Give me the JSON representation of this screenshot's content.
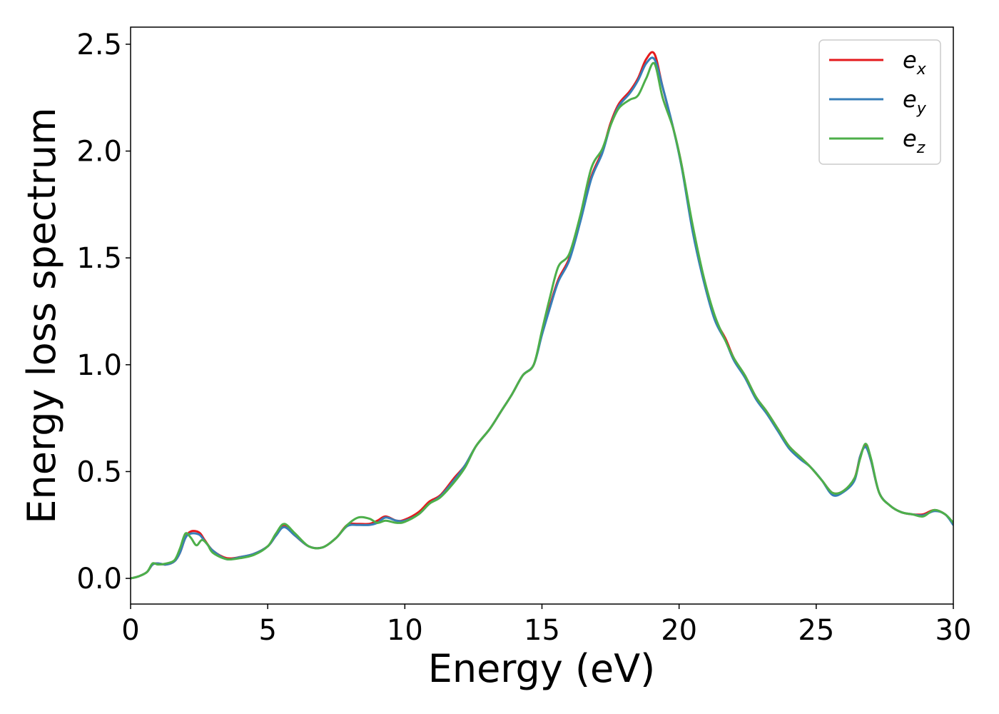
{
  "chart_data": {
    "type": "line",
    "title": "",
    "xlabel": "Energy (eV)",
    "ylabel": "Energy loss spectrum",
    "xlim": [
      0,
      30
    ],
    "ylim": [
      -0.12,
      2.58
    ],
    "x_ticks": [
      0,
      5,
      10,
      15,
      20,
      25,
      30
    ],
    "x_tick_labels": [
      "0",
      "5",
      "10",
      "15",
      "20",
      "25",
      "30"
    ],
    "y_ticks": [
      0.0,
      0.5,
      1.0,
      1.5,
      2.0,
      2.5
    ],
    "y_tick_labels": [
      "0.0",
      "0.5",
      "1.0",
      "1.5",
      "2.0",
      "2.5"
    ],
    "grid": false,
    "legend_position": "top-right",
    "series": [
      {
        "name": "e_x",
        "label_base": "e",
        "label_sub": "x",
        "color": "#e41a1c",
        "points": [
          [
            0,
            0.0
          ],
          [
            0.3,
            0.01
          ],
          [
            0.6,
            0.03
          ],
          [
            0.8,
            0.065
          ],
          [
            1.0,
            0.07
          ],
          [
            1.3,
            0.065
          ],
          [
            1.6,
            0.08
          ],
          [
            1.8,
            0.12
          ],
          [
            2.0,
            0.19
          ],
          [
            2.2,
            0.22
          ],
          [
            2.5,
            0.215
          ],
          [
            2.7,
            0.18
          ],
          [
            3.0,
            0.13
          ],
          [
            3.5,
            0.095
          ],
          [
            4.0,
            0.1
          ],
          [
            4.5,
            0.115
          ],
          [
            5.0,
            0.15
          ],
          [
            5.3,
            0.2
          ],
          [
            5.6,
            0.245
          ],
          [
            6.0,
            0.2
          ],
          [
            6.5,
            0.15
          ],
          [
            7.0,
            0.145
          ],
          [
            7.5,
            0.19
          ],
          [
            7.9,
            0.25
          ],
          [
            8.3,
            0.255
          ],
          [
            8.7,
            0.255
          ],
          [
            9.0,
            0.27
          ],
          [
            9.3,
            0.29
          ],
          [
            9.7,
            0.27
          ],
          [
            10.0,
            0.275
          ],
          [
            10.5,
            0.31
          ],
          [
            10.9,
            0.36
          ],
          [
            11.3,
            0.39
          ],
          [
            11.8,
            0.47
          ],
          [
            12.2,
            0.53
          ],
          [
            12.6,
            0.62
          ],
          [
            13.1,
            0.7
          ],
          [
            13.5,
            0.78
          ],
          [
            13.9,
            0.86
          ],
          [
            14.3,
            0.95
          ],
          [
            14.7,
            1.0
          ],
          [
            15.0,
            1.15
          ],
          [
            15.3,
            1.28
          ],
          [
            15.6,
            1.4
          ],
          [
            16.0,
            1.5
          ],
          [
            16.4,
            1.68
          ],
          [
            16.8,
            1.88
          ],
          [
            17.2,
            2.0
          ],
          [
            17.5,
            2.13
          ],
          [
            17.8,
            2.22
          ],
          [
            18.2,
            2.28
          ],
          [
            18.5,
            2.34
          ],
          [
            18.8,
            2.43
          ],
          [
            19.1,
            2.455
          ],
          [
            19.4,
            2.3
          ],
          [
            19.8,
            2.1
          ],
          [
            20.1,
            1.93
          ],
          [
            20.5,
            1.63
          ],
          [
            20.9,
            1.4
          ],
          [
            21.3,
            1.22
          ],
          [
            21.7,
            1.12
          ],
          [
            22.0,
            1.03
          ],
          [
            22.4,
            0.95
          ],
          [
            22.8,
            0.85
          ],
          [
            23.2,
            0.78
          ],
          [
            23.6,
            0.7
          ],
          [
            24.0,
            0.62
          ],
          [
            24.4,
            0.57
          ],
          [
            24.8,
            0.52
          ],
          [
            25.2,
            0.46
          ],
          [
            25.6,
            0.4
          ],
          [
            26.0,
            0.41
          ],
          [
            26.4,
            0.47
          ],
          [
            26.6,
            0.57
          ],
          [
            26.8,
            0.62
          ],
          [
            27.0,
            0.55
          ],
          [
            27.3,
            0.4
          ],
          [
            27.7,
            0.34
          ],
          [
            28.1,
            0.31
          ],
          [
            28.5,
            0.3
          ],
          [
            28.9,
            0.3
          ],
          [
            29.3,
            0.32
          ],
          [
            29.7,
            0.3
          ],
          [
            30.0,
            0.255
          ]
        ]
      },
      {
        "name": "e_y",
        "label_base": "e",
        "label_sub": "y",
        "color": "#377eb8",
        "points": [
          [
            0,
            0.0
          ],
          [
            0.3,
            0.01
          ],
          [
            0.6,
            0.03
          ],
          [
            0.8,
            0.065
          ],
          [
            1.0,
            0.07
          ],
          [
            1.3,
            0.065
          ],
          [
            1.6,
            0.08
          ],
          [
            1.8,
            0.12
          ],
          [
            2.0,
            0.19
          ],
          [
            2.2,
            0.21
          ],
          [
            2.5,
            0.205
          ],
          [
            2.7,
            0.175
          ],
          [
            3.0,
            0.13
          ],
          [
            3.5,
            0.09
          ],
          [
            4.0,
            0.1
          ],
          [
            4.5,
            0.115
          ],
          [
            5.0,
            0.15
          ],
          [
            5.3,
            0.2
          ],
          [
            5.6,
            0.24
          ],
          [
            6.0,
            0.2
          ],
          [
            6.5,
            0.15
          ],
          [
            7.0,
            0.145
          ],
          [
            7.5,
            0.19
          ],
          [
            7.9,
            0.245
          ],
          [
            8.3,
            0.25
          ],
          [
            8.7,
            0.25
          ],
          [
            9.0,
            0.26
          ],
          [
            9.3,
            0.285
          ],
          [
            9.7,
            0.27
          ],
          [
            10.0,
            0.27
          ],
          [
            10.5,
            0.3
          ],
          [
            10.9,
            0.35
          ],
          [
            11.3,
            0.385
          ],
          [
            11.8,
            0.46
          ],
          [
            12.2,
            0.53
          ],
          [
            12.6,
            0.62
          ],
          [
            13.1,
            0.7
          ],
          [
            13.5,
            0.78
          ],
          [
            13.9,
            0.86
          ],
          [
            14.3,
            0.95
          ],
          [
            14.7,
            1.0
          ],
          [
            15.0,
            1.14
          ],
          [
            15.3,
            1.27
          ],
          [
            15.6,
            1.39
          ],
          [
            16.0,
            1.49
          ],
          [
            16.4,
            1.67
          ],
          [
            16.8,
            1.87
          ],
          [
            17.2,
            1.99
          ],
          [
            17.5,
            2.12
          ],
          [
            17.8,
            2.21
          ],
          [
            18.2,
            2.27
          ],
          [
            18.5,
            2.33
          ],
          [
            18.8,
            2.41
          ],
          [
            19.1,
            2.43
          ],
          [
            19.4,
            2.3
          ],
          [
            19.8,
            2.1
          ],
          [
            20.1,
            1.92
          ],
          [
            20.5,
            1.62
          ],
          [
            20.9,
            1.39
          ],
          [
            21.3,
            1.21
          ],
          [
            21.7,
            1.11
          ],
          [
            22.0,
            1.02
          ],
          [
            22.4,
            0.94
          ],
          [
            22.8,
            0.84
          ],
          [
            23.2,
            0.77
          ],
          [
            23.6,
            0.69
          ],
          [
            24.0,
            0.61
          ],
          [
            24.4,
            0.56
          ],
          [
            24.8,
            0.52
          ],
          [
            25.2,
            0.46
          ],
          [
            25.6,
            0.39
          ],
          [
            26.0,
            0.405
          ],
          [
            26.4,
            0.46
          ],
          [
            26.6,
            0.57
          ],
          [
            26.8,
            0.615
          ],
          [
            27.0,
            0.55
          ],
          [
            27.3,
            0.4
          ],
          [
            27.7,
            0.34
          ],
          [
            28.1,
            0.31
          ],
          [
            28.5,
            0.3
          ],
          [
            28.9,
            0.295
          ],
          [
            29.3,
            0.315
          ],
          [
            29.7,
            0.3
          ],
          [
            30.0,
            0.25
          ]
        ]
      },
      {
        "name": "e_z",
        "label_base": "e",
        "label_sub": "z",
        "color": "#4daf4a",
        "points": [
          [
            0,
            0.0
          ],
          [
            0.3,
            0.01
          ],
          [
            0.6,
            0.03
          ],
          [
            0.8,
            0.07
          ],
          [
            1.0,
            0.065
          ],
          [
            1.3,
            0.07
          ],
          [
            1.6,
            0.085
          ],
          [
            1.8,
            0.14
          ],
          [
            2.0,
            0.21
          ],
          [
            2.2,
            0.19
          ],
          [
            2.4,
            0.155
          ],
          [
            2.6,
            0.18
          ],
          [
            2.8,
            0.16
          ],
          [
            3.0,
            0.12
          ],
          [
            3.5,
            0.09
          ],
          [
            4.0,
            0.095
          ],
          [
            4.5,
            0.11
          ],
          [
            5.0,
            0.15
          ],
          [
            5.3,
            0.21
          ],
          [
            5.6,
            0.255
          ],
          [
            6.0,
            0.21
          ],
          [
            6.5,
            0.15
          ],
          [
            7.0,
            0.145
          ],
          [
            7.5,
            0.19
          ],
          [
            7.9,
            0.25
          ],
          [
            8.3,
            0.285
          ],
          [
            8.7,
            0.28
          ],
          [
            9.0,
            0.26
          ],
          [
            9.3,
            0.27
          ],
          [
            9.7,
            0.26
          ],
          [
            10.0,
            0.265
          ],
          [
            10.5,
            0.3
          ],
          [
            10.9,
            0.35
          ],
          [
            11.3,
            0.38
          ],
          [
            11.8,
            0.45
          ],
          [
            12.2,
            0.52
          ],
          [
            12.6,
            0.62
          ],
          [
            13.1,
            0.7
          ],
          [
            13.5,
            0.78
          ],
          [
            13.9,
            0.86
          ],
          [
            14.3,
            0.95
          ],
          [
            14.7,
            1.0
          ],
          [
            15.0,
            1.16
          ],
          [
            15.3,
            1.32
          ],
          [
            15.6,
            1.46
          ],
          [
            16.0,
            1.52
          ],
          [
            16.4,
            1.7
          ],
          [
            16.8,
            1.92
          ],
          [
            17.2,
            2.01
          ],
          [
            17.5,
            2.12
          ],
          [
            17.8,
            2.2
          ],
          [
            18.2,
            2.24
          ],
          [
            18.5,
            2.26
          ],
          [
            18.8,
            2.34
          ],
          [
            19.1,
            2.41
          ],
          [
            19.4,
            2.25
          ],
          [
            19.8,
            2.1
          ],
          [
            20.1,
            1.93
          ],
          [
            20.5,
            1.65
          ],
          [
            20.9,
            1.41
          ],
          [
            21.3,
            1.23
          ],
          [
            21.7,
            1.11
          ],
          [
            22.0,
            1.03
          ],
          [
            22.4,
            0.95
          ],
          [
            22.8,
            0.85
          ],
          [
            23.2,
            0.78
          ],
          [
            23.6,
            0.7
          ],
          [
            24.0,
            0.62
          ],
          [
            24.4,
            0.57
          ],
          [
            24.8,
            0.52
          ],
          [
            25.2,
            0.46
          ],
          [
            25.6,
            0.4
          ],
          [
            26.0,
            0.41
          ],
          [
            26.4,
            0.47
          ],
          [
            26.6,
            0.56
          ],
          [
            26.8,
            0.63
          ],
          [
            27.0,
            0.56
          ],
          [
            27.3,
            0.4
          ],
          [
            27.7,
            0.34
          ],
          [
            28.1,
            0.31
          ],
          [
            28.5,
            0.3
          ],
          [
            28.9,
            0.29
          ],
          [
            29.3,
            0.32
          ],
          [
            29.7,
            0.3
          ],
          [
            30.0,
            0.26
          ]
        ]
      }
    ]
  }
}
